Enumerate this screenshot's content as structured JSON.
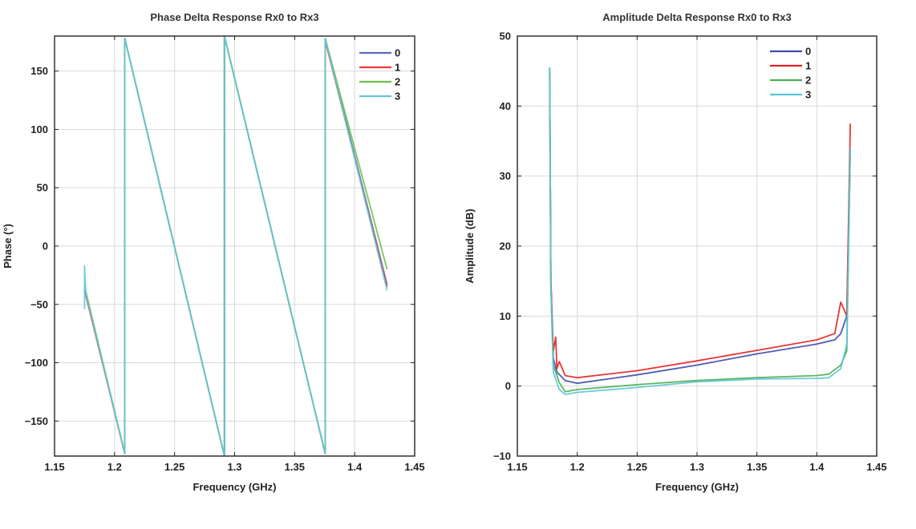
{
  "chart_data": [
    {
      "type": "line",
      "title": "Phase Delta Response Rx0 to Rx3",
      "xlabel": "Frequency (GHz)",
      "ylabel": "Phase (°)",
      "xlim": [
        1.15,
        1.45
      ],
      "ylim": [
        -180,
        180
      ],
      "xticks": [
        1.15,
        1.2,
        1.25,
        1.3,
        1.35,
        1.4,
        1.45
      ],
      "xtick_labels": [
        "1.15",
        "1.2",
        "1.25",
        "1.3",
        "1.35",
        "1.4",
        "1.45"
      ],
      "yticks": [
        -150,
        -100,
        -50,
        0,
        50,
        100,
        150
      ],
      "ytick_labels": [
        "−150",
        "−100",
        "−50",
        "0",
        "50",
        "100",
        "150"
      ],
      "grid": true,
      "legend": "top-right",
      "series": [
        {
          "name": "0",
          "color": "#5b6bc0",
          "x": [
            1.175,
            1.2085,
            1.2085,
            1.2915,
            1.2915,
            1.3755,
            1.3755,
            1.427
          ],
          "y": [
            -36,
            -178,
            178,
            -180,
            180,
            -178,
            178,
            -33
          ]
        },
        {
          "name": "1",
          "color": "#ee3b3b",
          "x": [
            1.175,
            1.2085,
            1.2085,
            1.2915,
            1.2915,
            1.3755,
            1.3755,
            1.427
          ],
          "y": [
            -38,
            -178,
            178,
            -180,
            180,
            -178,
            176,
            -35
          ]
        },
        {
          "name": "2",
          "color": "#6ac24a",
          "x": [
            1.175,
            1.2085,
            1.2085,
            1.2915,
            1.2915,
            1.3755,
            1.3755,
            1.427
          ],
          "y": [
            -34,
            -178,
            178,
            -180,
            180,
            -178,
            178,
            -20
          ]
        },
        {
          "name": "3",
          "color": "#62c8d8",
          "x": [
            1.175,
            1.175,
            1.176,
            1.2085,
            1.2085,
            1.2915,
            1.2915,
            1.3755,
            1.3755,
            1.427
          ],
          "y": [
            -54,
            -17,
            -40,
            -178,
            178,
            -180,
            180,
            -178,
            178,
            -38
          ]
        }
      ]
    },
    {
      "type": "line",
      "title": "Amplitude Delta Response Rx0 to Rx3",
      "xlabel": "Frequency (GHz)",
      "ylabel": "Amplitude (dB)",
      "xlim": [
        1.15,
        1.45
      ],
      "ylim": [
        -10,
        50
      ],
      "xticks": [
        1.15,
        1.2,
        1.25,
        1.3,
        1.35,
        1.4,
        1.45
      ],
      "xtick_labels": [
        "1.15",
        "1.2",
        "1.25",
        "1.3",
        "1.35",
        "1.4",
        "1.45"
      ],
      "yticks": [
        -10,
        0,
        10,
        20,
        30,
        40,
        50
      ],
      "ytick_labels": [
        "−10",
        "0",
        "10",
        "20",
        "30",
        "40",
        "50"
      ],
      "grid": true,
      "legend": "top-right",
      "series": [
        {
          "name": "0",
          "color": "#3c4aa8",
          "x": [
            1.177,
            1.178,
            1.18,
            1.183,
            1.19,
            1.2,
            1.25,
            1.3,
            1.35,
            1.4,
            1.415,
            1.42,
            1.425,
            1.428
          ],
          "y": [
            45,
            15,
            4,
            2,
            0.8,
            0.4,
            1.6,
            3.0,
            4.6,
            6.0,
            6.6,
            7.5,
            10,
            34
          ]
        },
        {
          "name": "1",
          "color": "#e82020",
          "x": [
            1.177,
            1.178,
            1.18,
            1.182,
            1.183,
            1.185,
            1.19,
            1.2,
            1.25,
            1.3,
            1.35,
            1.4,
            1.415,
            1.42,
            1.425,
            1.428
          ],
          "y": [
            45,
            15,
            5,
            7,
            2.5,
            3.5,
            1.5,
            1.2,
            2.2,
            3.6,
            5.1,
            6.6,
            7.5,
            12,
            10,
            37.5
          ]
        },
        {
          "name": "2",
          "color": "#4caf50",
          "x": [
            1.177,
            1.178,
            1.18,
            1.185,
            1.19,
            1.2,
            1.25,
            1.3,
            1.35,
            1.4,
            1.41,
            1.42,
            1.425,
            1.428
          ],
          "y": [
            45.5,
            14,
            3,
            0.5,
            -0.8,
            -0.5,
            0.2,
            0.8,
            1.2,
            1.5,
            1.7,
            3,
            5,
            34
          ]
        },
        {
          "name": "3",
          "color": "#5cc4d6",
          "x": [
            1.177,
            1.178,
            1.18,
            1.185,
            1.19,
            1.2,
            1.25,
            1.3,
            1.35,
            1.4,
            1.41,
            1.42,
            1.425,
            1.428
          ],
          "y": [
            45.5,
            14,
            2,
            -0.5,
            -1.2,
            -0.9,
            -0.2,
            0.6,
            1.0,
            1.1,
            1.2,
            2.5,
            6,
            34
          ]
        }
      ]
    }
  ]
}
